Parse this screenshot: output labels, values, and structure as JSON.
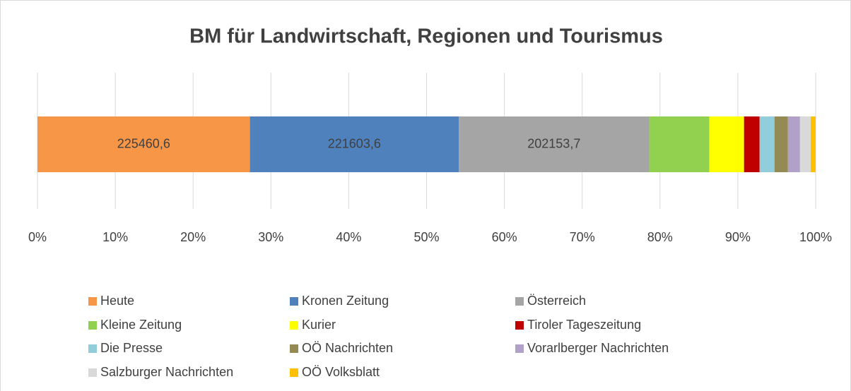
{
  "chart_data": {
    "type": "bar",
    "orientation": "horizontal",
    "stacking": "percent",
    "title": "BM für Landwirtschaft, Regionen und Tourismus",
    "categories": [
      null
    ],
    "series": [
      {
        "name": "Heute",
        "color": "#f79646",
        "values": [
          225460.6
        ],
        "value_labels": [
          "225460,6"
        ]
      },
      {
        "name": "Kronen Zeitung",
        "color": "#4f81bd",
        "values": [
          221603.6
        ],
        "value_labels": [
          "221603,6"
        ]
      },
      {
        "name": "Österreich",
        "color": "#a5a5a5",
        "values": [
          202153.7
        ],
        "value_labels": [
          "202153,7"
        ]
      },
      {
        "name": "Kleine Zeitung",
        "color": "#92d050",
        "values": [
          63800
        ]
      },
      {
        "name": "Kurier",
        "color": "#ffff00",
        "values": [
          36800
        ]
      },
      {
        "name": "Tiroler Tageszeitung",
        "color": "#c00000",
        "values": [
          16500
        ]
      },
      {
        "name": "Die Presse",
        "color": "#92cddc",
        "values": [
          15800
        ]
      },
      {
        "name": "OÖ Nachrichten",
        "color": "#948a54",
        "values": [
          14300
        ]
      },
      {
        "name": "Vorarlberger Nachrichten",
        "color": "#b1a0c7",
        "values": [
          12800
        ]
      },
      {
        "name": "Salzburger Nachrichten",
        "color": "#d9d9d9",
        "values": [
          11300
        ]
      },
      {
        "name": "OÖ Volksblatt",
        "color": "#ffc000",
        "values": [
          5300
        ]
      }
    ],
    "xlim": [
      0,
      100
    ],
    "xticks": [
      {
        "value": 0,
        "label": "0%"
      },
      {
        "value": 10,
        "label": "10%"
      },
      {
        "value": 20,
        "label": "20%"
      },
      {
        "value": 30,
        "label": "30%"
      },
      {
        "value": 40,
        "label": "40%"
      },
      {
        "value": 50,
        "label": "50%"
      },
      {
        "value": 60,
        "label": "60%"
      },
      {
        "value": 70,
        "label": "70%"
      },
      {
        "value": 80,
        "label": "80%"
      },
      {
        "value": 90,
        "label": "90%"
      },
      {
        "value": 100,
        "label": "100%"
      }
    ],
    "grid": true,
    "legend": "bottom"
  }
}
